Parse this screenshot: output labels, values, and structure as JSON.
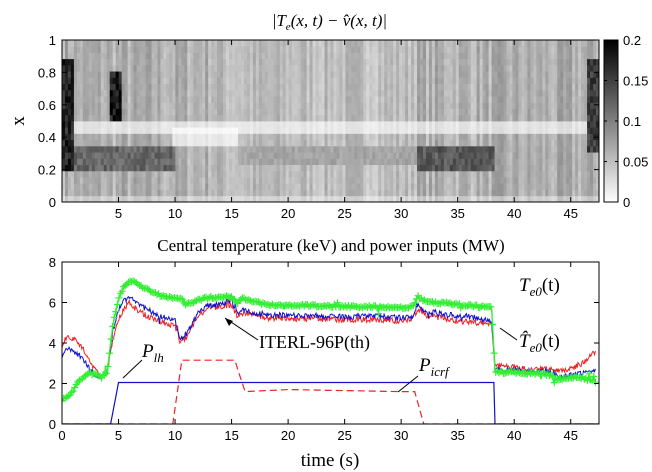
{
  "chart_data": [
    {
      "type": "heatmap",
      "title": "|T_e(x,t) − v̂(x,t)|",
      "title_parts": {
        "left": "|",
        "T": "T",
        "sub_e": "e",
        "args": "(x, t) − ",
        "vhat": "v̂",
        "args2": "(x, t)|"
      },
      "ylabel": "x",
      "xlim": [
        0,
        47.5
      ],
      "ylim": [
        0,
        1
      ],
      "xticks": [
        5,
        10,
        15,
        20,
        25,
        30,
        35,
        40,
        45
      ],
      "yticks": [
        0,
        0.2,
        0.4,
        0.6,
        0.8,
        1
      ],
      "ytick_labels": [
        "0",
        "0.2",
        "0.4",
        "0.6",
        "0.8",
        "1"
      ],
      "colorbar": {
        "min": 0,
        "max": 0.2,
        "ticks": [
          0,
          0.05,
          0.1,
          0.15,
          0.2
        ],
        "tick_labels": [
          "0",
          "0.05",
          "0.1",
          "0.15",
          "0.2"
        ],
        "colormap": "gray-reversed"
      },
      "value_bands": [
        {
          "x0": 0,
          "x1": 10,
          "y0": 0.18,
          "y1": 0.36,
          "value": 0.12
        },
        {
          "x0": 15.5,
          "x1": 31.5,
          "y0": 0.22,
          "y1": 0.34,
          "value": 0.07
        },
        {
          "x0": 31.5,
          "x1": 38.2,
          "y0": 0.18,
          "y1": 0.36,
          "value": 0.13
        },
        {
          "x0": 4.3,
          "x1": 5.3,
          "y0": 0.5,
          "y1": 0.8,
          "value": 0.18
        },
        {
          "x0": 0,
          "x1": 1,
          "y0": 0.2,
          "y1": 0.9,
          "value": 0.17
        },
        {
          "x0": 46.5,
          "x1": 47.5,
          "y0": 0.3,
          "y1": 0.9,
          "value": 0.15
        }
      ]
    },
    {
      "type": "line",
      "title": "Central temperature (keV) and power inputs (MW)",
      "xlabel": "time (s)",
      "xlim": [
        0,
        47.5
      ],
      "ylim": [
        0,
        8
      ],
      "xticks": [
        0,
        5,
        10,
        15,
        20,
        25,
        30,
        35,
        40,
        45
      ],
      "yticks": [
        0,
        2,
        4,
        6,
        8
      ],
      "series": [
        {
          "name": "T_e0(t)",
          "color": "#33ee33",
          "marker": "plus",
          "x": [
            0,
            0.5,
            1,
            1.5,
            2,
            2.5,
            3,
            3.5,
            4,
            4.5,
            5,
            5.5,
            6,
            6.5,
            7,
            8,
            9,
            10,
            10.5,
            11,
            12,
            13,
            14,
            15,
            15.5,
            16,
            17,
            18,
            20,
            22,
            25,
            28,
            30,
            31,
            31.5,
            32,
            33,
            34,
            35,
            36,
            37,
            38,
            38.3,
            39,
            40,
            41,
            42,
            43,
            44,
            45,
            46,
            47
          ],
          "y": [
            1.2,
            1.3,
            1.7,
            2.1,
            2.4,
            2.5,
            2.45,
            2.3,
            2.6,
            4.9,
            6.2,
            6.8,
            7.1,
            7.0,
            6.8,
            6.5,
            6.3,
            6.2,
            6.2,
            5.9,
            6.1,
            6.25,
            6.25,
            6.3,
            6.0,
            6.2,
            6.05,
            5.9,
            5.85,
            5.85,
            5.8,
            5.8,
            5.75,
            5.8,
            6.3,
            6.1,
            6.0,
            5.95,
            5.9,
            5.85,
            5.8,
            5.75,
            2.6,
            2.55,
            2.55,
            2.5,
            2.5,
            2.45,
            2.2,
            2.3,
            2.3,
            2.1
          ]
        },
        {
          "name": "T̂_e0(t)",
          "color": "#1111cc",
          "marker": "none",
          "x": [
            0,
            0.5,
            1,
            1.5,
            2,
            2.5,
            3,
            3.5,
            4,
            4.5,
            5,
            5.5,
            6,
            6.5,
            7,
            8,
            9,
            10,
            10.5,
            11,
            12,
            13,
            14,
            15,
            15.5,
            16,
            17,
            18,
            20,
            22,
            25,
            28,
            30,
            31,
            31.5,
            32,
            33,
            34,
            35,
            36,
            37,
            38,
            38.3,
            39,
            40,
            41,
            42,
            43,
            44,
            45,
            46,
            47
          ],
          "y": [
            3.4,
            3.7,
            3.6,
            3.4,
            3.1,
            2.7,
            2.4,
            2.3,
            2.5,
            4.6,
            5.6,
            6.1,
            6.3,
            6.0,
            5.8,
            5.5,
            5.3,
            5.1,
            4.2,
            4.4,
            5.5,
            5.9,
            5.9,
            6.1,
            5.4,
            5.6,
            5.5,
            5.4,
            5.35,
            5.35,
            5.3,
            5.3,
            5.25,
            5.3,
            6.0,
            5.6,
            5.5,
            5.4,
            5.35,
            5.3,
            5.2,
            5.1,
            2.7,
            2.7,
            2.65,
            2.65,
            2.6,
            2.6,
            2.3,
            2.4,
            2.5,
            2.6
          ]
        },
        {
          "name": "ITERL-96P(th)",
          "color": "#ee2222",
          "marker": "none",
          "x": [
            0,
            0.5,
            1,
            1.5,
            2,
            2.5,
            3,
            3.5,
            4,
            4.5,
            5,
            5.5,
            6,
            6.5,
            7,
            8,
            9,
            10,
            10.5,
            11,
            12,
            13,
            14,
            15,
            15.5,
            16,
            17,
            18,
            20,
            22,
            25,
            28,
            30,
            31,
            31.5,
            32,
            33,
            34,
            35,
            36,
            37,
            38,
            38.3,
            39,
            40,
            41,
            42,
            43,
            44,
            45,
            46,
            47
          ],
          "y": [
            3.9,
            4.4,
            4.2,
            4.0,
            3.6,
            3.0,
            2.6,
            2.4,
            2.6,
            4.2,
            5.2,
            5.7,
            6.0,
            5.7,
            5.5,
            5.2,
            5.0,
            4.8,
            4.0,
            4.3,
            5.3,
            5.7,
            5.8,
            5.9,
            5.3,
            5.5,
            5.4,
            5.25,
            5.2,
            5.2,
            5.15,
            5.15,
            5.1,
            5.2,
            5.7,
            5.4,
            5.3,
            5.2,
            5.1,
            5.05,
            5.0,
            4.95,
            2.9,
            2.85,
            2.8,
            2.75,
            2.7,
            2.7,
            2.6,
            2.7,
            3.0,
            3.5
          ]
        },
        {
          "name": "P_lh",
          "color": "#1111cc",
          "marker": "none",
          "x": [
            0,
            4.3,
            5.0,
            15,
            20,
            25,
            30,
            38.2,
            38.3,
            47.5
          ],
          "y": [
            0,
            0,
            2.05,
            2.05,
            2.05,
            2.05,
            2.05,
            2.05,
            0,
            0
          ]
        },
        {
          "name": "P_icrf",
          "color": "#ee2222",
          "marker": "none",
          "dash": true,
          "x": [
            0,
            9.8,
            10.6,
            15.3,
            15.6,
            16.2,
            20,
            25,
            30,
            31.2,
            32.0,
            47.5
          ],
          "y": [
            0,
            0,
            3.15,
            3.15,
            2.6,
            1.6,
            1.7,
            1.65,
            1.6,
            1.6,
            0,
            0
          ]
        }
      ],
      "annotations": {
        "te0": {
          "T": "T",
          "sub": "e0",
          "rest": "(t)"
        },
        "te0hat": {
          "T": "T̂",
          "sub": "e0",
          "rest": "(t)"
        },
        "iterl": "ITERL-96P(th)",
        "plh": {
          "P": "P",
          "sub": "lh"
        },
        "picrf": {
          "P": "P",
          "sub": "icrf"
        }
      }
    }
  ]
}
